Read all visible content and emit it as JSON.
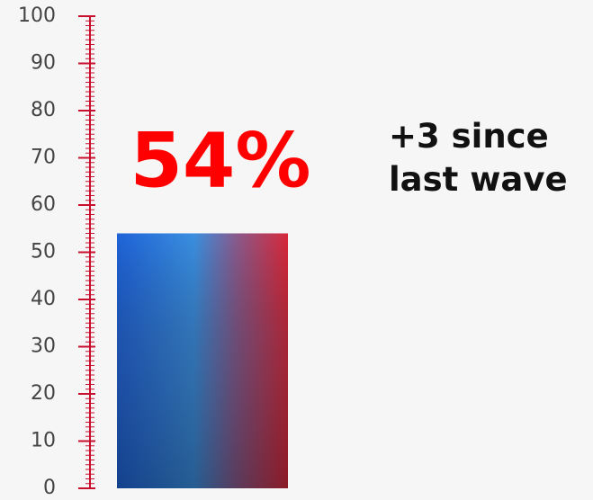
{
  "chart_data": {
    "type": "bar",
    "values": [
      54
    ],
    "value_labels": [
      "54%"
    ],
    "annotation": "+3 since last wave",
    "ylim": [
      0,
      100
    ],
    "yticks": [
      0,
      10,
      20,
      30,
      40,
      50,
      60,
      70,
      80,
      90,
      100
    ]
  }
}
